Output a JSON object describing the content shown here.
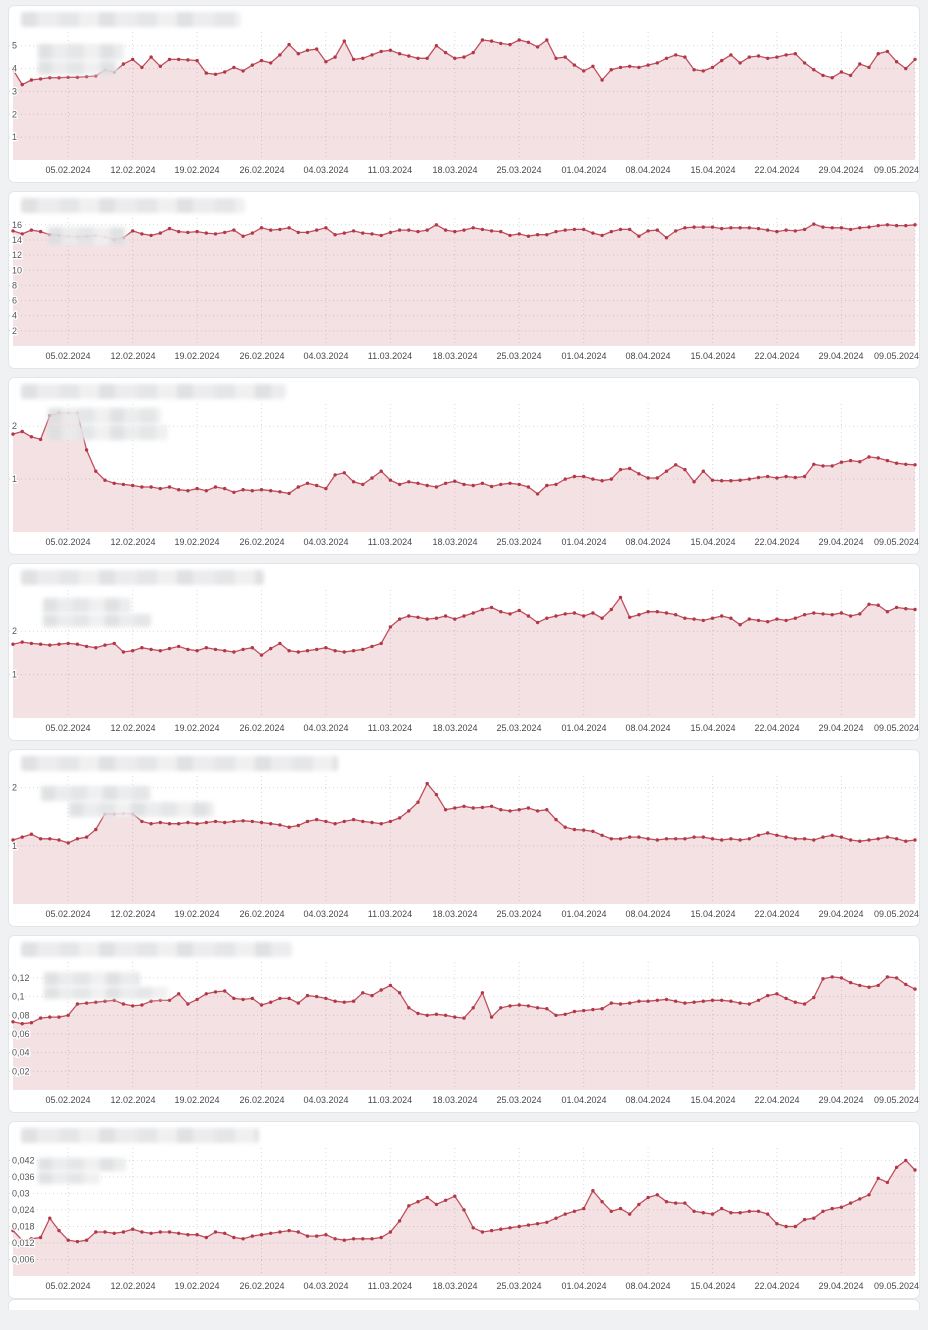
{
  "page": {
    "background_color": "#f0f1f3",
    "card_background": "#ffffff",
    "card_border": "#e3e5e9"
  },
  "chart_style": {
    "line_color": "#c04e5c",
    "dot_color": "#b23848",
    "fill_color": "rgba(191,75,89,0.165)",
    "grid_color": "#d6d8db",
    "y_label_color": "#54565a",
    "x_label_color": "#46484c"
  },
  "chart_data": [
    {
      "type": "area",
      "title": "",
      "title_redacted": true,
      "n_points": 99,
      "x_tick_labels": [
        "05.02.2024",
        "12.02.2024",
        "19.02.2024",
        "26.02.2024",
        "04.03.2024",
        "11.03.2024",
        "18.03.2024",
        "25.03.2024",
        "01.04.2024",
        "08.04.2024",
        "15.04.2024",
        "22.04.2024",
        "29.04.2024",
        "09.05.2024"
      ],
      "x_tick_indices": [
        6,
        13,
        20,
        27,
        34,
        41,
        48,
        55,
        62,
        69,
        76,
        83,
        90,
        98
      ],
      "y_ticks": [
        {
          "value": 1,
          "label": "1"
        },
        {
          "value": 2,
          "label": "2"
        },
        {
          "value": 3,
          "label": "3"
        },
        {
          "value": 4,
          "label": "4"
        },
        {
          "value": 5,
          "label": "5"
        }
      ],
      "ylim": [
        0,
        5.6
      ],
      "values": [
        3.95,
        3.3,
        3.5,
        3.55,
        3.6,
        3.6,
        3.62,
        3.62,
        3.65,
        3.68,
        3.95,
        3.85,
        4.2,
        4.4,
        4.05,
        4.5,
        4.1,
        4.4,
        4.4,
        4.38,
        4.35,
        3.8,
        3.75,
        3.85,
        4.05,
        3.9,
        4.15,
        4.35,
        4.25,
        4.6,
        5.05,
        4.65,
        4.8,
        4.85,
        4.3,
        4.5,
        5.2,
        4.4,
        4.45,
        4.6,
        4.75,
        4.8,
        4.65,
        4.55,
        4.45,
        4.45,
        5.0,
        4.7,
        4.45,
        4.5,
        4.7,
        5.25,
        5.2,
        5.1,
        5.05,
        5.25,
        5.15,
        4.95,
        5.25,
        4.45,
        4.5,
        4.15,
        3.9,
        4.1,
        3.5,
        3.95,
        4.05,
        4.1,
        4.05,
        4.15,
        4.25,
        4.45,
        4.6,
        4.5,
        3.95,
        3.9,
        4.05,
        4.35,
        4.6,
        4.25,
        4.5,
        4.55,
        4.45,
        4.5,
        4.6,
        4.65,
        4.25,
        3.95,
        3.7,
        3.6,
        3.85,
        3.7,
        4.2,
        4.05,
        4.65,
        4.75,
        4.3,
        4.0,
        4.4
      ],
      "redaction": {
        "title_width": 220,
        "legend_blocks": [
          [
            29,
            12,
            86,
            16
          ],
          [
            29,
            29,
            80,
            14
          ]
        ]
      }
    },
    {
      "type": "area",
      "title": "",
      "title_redacted": true,
      "n_points": 99,
      "x_tick_labels": [
        "05.02.2024",
        "12.02.2024",
        "19.02.2024",
        "26.02.2024",
        "04.03.2024",
        "11.03.2024",
        "18.03.2024",
        "25.03.2024",
        "01.04.2024",
        "08.04.2024",
        "15.04.2024",
        "22.04.2024",
        "29.04.2024",
        "09.05.2024"
      ],
      "x_tick_indices": [
        6,
        13,
        20,
        27,
        34,
        41,
        48,
        55,
        62,
        69,
        76,
        83,
        90,
        98
      ],
      "y_ticks": [
        {
          "value": 2,
          "label": "2"
        },
        {
          "value": 4,
          "label": "4"
        },
        {
          "value": 6,
          "label": "6"
        },
        {
          "value": 8,
          "label": "8"
        },
        {
          "value": 10,
          "label": "10"
        },
        {
          "value": 12,
          "label": "12"
        },
        {
          "value": 14,
          "label": "14"
        },
        {
          "value": 16,
          "label": "16"
        }
      ],
      "ylim": [
        0,
        16.9
      ],
      "values": [
        15.2,
        14.8,
        15.3,
        15.1,
        14.7,
        14.6,
        14.5,
        14.4,
        14.5,
        14.6,
        14.4,
        14.05,
        14.3,
        15.2,
        14.8,
        14.6,
        14.9,
        15.5,
        15.1,
        15.0,
        15.1,
        14.9,
        14.8,
        15.0,
        15.3,
        14.5,
        14.9,
        15.6,
        15.3,
        15.4,
        15.6,
        15.0,
        15.0,
        15.3,
        15.6,
        14.7,
        14.9,
        15.2,
        14.9,
        14.8,
        14.6,
        15.0,
        15.3,
        15.3,
        15.1,
        15.3,
        16.0,
        15.3,
        15.1,
        15.3,
        15.6,
        15.4,
        15.2,
        15.1,
        14.6,
        14.8,
        14.5,
        14.7,
        14.7,
        15.1,
        15.3,
        15.4,
        15.4,
        14.9,
        14.6,
        15.1,
        15.4,
        15.4,
        14.5,
        15.2,
        15.3,
        14.3,
        15.2,
        15.6,
        15.7,
        15.7,
        15.7,
        15.5,
        15.6,
        15.6,
        15.6,
        15.5,
        15.3,
        15.1,
        15.3,
        15.2,
        15.4,
        16.1,
        15.7,
        15.6,
        15.6,
        15.4,
        15.6,
        15.7,
        15.9,
        16.0,
        15.9,
        15.9,
        16.0
      ],
      "redaction": {
        "title_width": 224,
        "legend_blocks": [
          [
            39,
            9,
            78,
            18
          ]
        ]
      }
    },
    {
      "type": "area",
      "title": "",
      "title_redacted": true,
      "n_points": 99,
      "x_tick_labels": [
        "05.02.2024",
        "12.02.2024",
        "19.02.2024",
        "26.02.2024",
        "04.03.2024",
        "11.03.2024",
        "18.03.2024",
        "25.03.2024",
        "01.04.2024",
        "08.04.2024",
        "15.04.2024",
        "22.04.2024",
        "29.04.2024",
        "09.05.2024"
      ],
      "x_tick_indices": [
        6,
        13,
        20,
        27,
        34,
        41,
        48,
        55,
        62,
        69,
        76,
        83,
        90,
        98
      ],
      "y_ticks": [
        {
          "value": 1,
          "label": "1"
        },
        {
          "value": 2,
          "label": "2"
        }
      ],
      "ylim": [
        0,
        2.42
      ],
      "values": [
        1.85,
        1.9,
        1.8,
        1.75,
        2.2,
        2.25,
        2.25,
        2.25,
        1.55,
        1.15,
        0.98,
        0.92,
        0.9,
        0.88,
        0.85,
        0.85,
        0.82,
        0.85,
        0.8,
        0.78,
        0.82,
        0.78,
        0.85,
        0.82,
        0.75,
        0.8,
        0.78,
        0.8,
        0.78,
        0.76,
        0.73,
        0.85,
        0.92,
        0.88,
        0.82,
        1.08,
        1.12,
        0.95,
        0.9,
        1.02,
        1.15,
        0.98,
        0.9,
        0.95,
        0.92,
        0.88,
        0.85,
        0.92,
        0.96,
        0.9,
        0.88,
        0.92,
        0.86,
        0.9,
        0.92,
        0.9,
        0.85,
        0.72,
        0.88,
        0.9,
        1.0,
        1.05,
        1.05,
        1.0,
        0.97,
        1.0,
        1.18,
        1.2,
        1.1,
        1.02,
        1.02,
        1.15,
        1.27,
        1.18,
        0.95,
        1.15,
        0.98,
        0.97,
        0.97,
        0.98,
        1.0,
        1.03,
        1.05,
        1.02,
        1.05,
        1.03,
        1.05,
        1.28,
        1.25,
        1.25,
        1.32,
        1.35,
        1.33,
        1.42,
        1.4,
        1.35,
        1.3,
        1.28,
        1.27
      ],
      "redaction": {
        "title_width": 265,
        "legend_blocks": [
          [
            39,
            4,
            113,
            16
          ],
          [
            39,
            21,
            120,
            15
          ]
        ]
      }
    },
    {
      "type": "area",
      "title": "",
      "title_redacted": true,
      "n_points": 99,
      "x_tick_labels": [
        "05.02.2024",
        "12.02.2024",
        "19.02.2024",
        "26.02.2024",
        "04.03.2024",
        "11.03.2024",
        "18.03.2024",
        "25.03.2024",
        "01.04.2024",
        "08.04.2024",
        "15.04.2024",
        "22.04.2024",
        "29.04.2024",
        "09.05.2024"
      ],
      "x_tick_indices": [
        6,
        13,
        20,
        27,
        34,
        41,
        48,
        55,
        62,
        69,
        76,
        83,
        90,
        98
      ],
      "y_ticks": [
        {
          "value": 1,
          "label": "1"
        },
        {
          "value": 2,
          "label": "2"
        }
      ],
      "ylim": [
        0,
        2.95
      ],
      "values": [
        1.7,
        1.75,
        1.72,
        1.7,
        1.68,
        1.7,
        1.72,
        1.7,
        1.65,
        1.62,
        1.68,
        1.72,
        1.52,
        1.55,
        1.62,
        1.58,
        1.55,
        1.6,
        1.65,
        1.58,
        1.55,
        1.62,
        1.58,
        1.55,
        1.52,
        1.58,
        1.62,
        1.45,
        1.6,
        1.72,
        1.55,
        1.52,
        1.55,
        1.58,
        1.62,
        1.55,
        1.52,
        1.55,
        1.58,
        1.65,
        1.72,
        2.1,
        2.28,
        2.35,
        2.32,
        2.28,
        2.3,
        2.35,
        2.28,
        2.35,
        2.42,
        2.5,
        2.55,
        2.45,
        2.4,
        2.48,
        2.35,
        2.2,
        2.3,
        2.35,
        2.4,
        2.42,
        2.35,
        2.42,
        2.3,
        2.5,
        2.78,
        2.32,
        2.38,
        2.45,
        2.45,
        2.42,
        2.38,
        2.3,
        2.28,
        2.25,
        2.3,
        2.35,
        2.3,
        2.15,
        2.28,
        2.25,
        2.22,
        2.28,
        2.25,
        2.3,
        2.38,
        2.42,
        2.4,
        2.38,
        2.42,
        2.35,
        2.4,
        2.62,
        2.6,
        2.45,
        2.55,
        2.52,
        2.5
      ],
      "redaction": {
        "title_width": 243,
        "legend_blocks": [
          [
            34,
            8,
            88,
            15
          ],
          [
            34,
            24,
            108,
            13
          ]
        ]
      }
    },
    {
      "type": "area",
      "title": "",
      "title_redacted": true,
      "n_points": 99,
      "x_tick_labels": [
        "05.02.2024",
        "12.02.2024",
        "19.02.2024",
        "26.02.2024",
        "04.03.2024",
        "11.03.2024",
        "18.03.2024",
        "25.03.2024",
        "01.04.2024",
        "08.04.2024",
        "15.04.2024",
        "22.04.2024",
        "29.04.2024",
        "09.05.2024"
      ],
      "x_tick_indices": [
        6,
        13,
        20,
        27,
        34,
        41,
        48,
        55,
        62,
        69,
        76,
        83,
        90,
        98
      ],
      "y_ticks": [
        {
          "value": 1,
          "label": "1"
        },
        {
          "value": 2,
          "label": "2"
        }
      ],
      "ylim": [
        0,
        2.2
      ],
      "values": [
        1.1,
        1.15,
        1.2,
        1.12,
        1.12,
        1.1,
        1.05,
        1.12,
        1.15,
        1.28,
        1.55,
        1.55,
        1.56,
        1.55,
        1.42,
        1.38,
        1.4,
        1.38,
        1.38,
        1.4,
        1.38,
        1.4,
        1.42,
        1.4,
        1.42,
        1.43,
        1.42,
        1.4,
        1.38,
        1.36,
        1.32,
        1.35,
        1.42,
        1.45,
        1.42,
        1.38,
        1.42,
        1.45,
        1.42,
        1.4,
        1.38,
        1.42,
        1.48,
        1.6,
        1.75,
        2.07,
        1.88,
        1.62,
        1.65,
        1.68,
        1.65,
        1.66,
        1.68,
        1.62,
        1.6,
        1.62,
        1.65,
        1.6,
        1.62,
        1.45,
        1.32,
        1.28,
        1.27,
        1.25,
        1.18,
        1.12,
        1.12,
        1.15,
        1.15,
        1.12,
        1.1,
        1.12,
        1.12,
        1.12,
        1.15,
        1.15,
        1.12,
        1.1,
        1.12,
        1.1,
        1.12,
        1.18,
        1.22,
        1.18,
        1.15,
        1.12,
        1.12,
        1.1,
        1.15,
        1.18,
        1.15,
        1.1,
        1.08,
        1.1,
        1.12,
        1.15,
        1.12,
        1.08,
        1.1
      ],
      "redaction": {
        "title_width": 317,
        "legend_blocks": [
          [
            32,
            10,
            110,
            15
          ],
          [
            60,
            26,
            145,
            15
          ]
        ]
      }
    },
    {
      "type": "area",
      "title": "",
      "title_redacted": true,
      "n_points": 99,
      "x_tick_labels": [
        "05.02.2024",
        "12.02.2024",
        "19.02.2024",
        "26.02.2024",
        "04.03.2024",
        "11.03.2024",
        "18.03.2024",
        "25.03.2024",
        "01.04.2024",
        "08.04.2024",
        "15.04.2024",
        "22.04.2024",
        "29.04.2024",
        "09.05.2024"
      ],
      "x_tick_indices": [
        6,
        13,
        20,
        27,
        34,
        41,
        48,
        55,
        62,
        69,
        76,
        83,
        90,
        98
      ],
      "y_ticks": [
        {
          "value": 0.02,
          "label": "0,02"
        },
        {
          "value": 0.04,
          "label": "0,04"
        },
        {
          "value": 0.06,
          "label": "0,06"
        },
        {
          "value": 0.08,
          "label": "0,08"
        },
        {
          "value": 0.1,
          "label": "0,1"
        },
        {
          "value": 0.12,
          "label": "0,12"
        }
      ],
      "ylim": [
        0,
        0.137
      ],
      "values": [
        0.073,
        0.071,
        0.072,
        0.077,
        0.078,
        0.078,
        0.08,
        0.092,
        0.093,
        0.094,
        0.095,
        0.096,
        0.092,
        0.09,
        0.091,
        0.095,
        0.096,
        0.096,
        0.103,
        0.092,
        0.097,
        0.103,
        0.105,
        0.106,
        0.098,
        0.097,
        0.098,
        0.091,
        0.094,
        0.098,
        0.098,
        0.093,
        0.101,
        0.1,
        0.098,
        0.095,
        0.094,
        0.095,
        0.104,
        0.101,
        0.107,
        0.112,
        0.104,
        0.088,
        0.082,
        0.08,
        0.081,
        0.08,
        0.078,
        0.077,
        0.088,
        0.104,
        0.078,
        0.088,
        0.09,
        0.091,
        0.09,
        0.088,
        0.087,
        0.08,
        0.081,
        0.084,
        0.085,
        0.086,
        0.087,
        0.093,
        0.092,
        0.093,
        0.095,
        0.095,
        0.096,
        0.097,
        0.095,
        0.093,
        0.094,
        0.095,
        0.096,
        0.096,
        0.095,
        0.093,
        0.092,
        0.096,
        0.101,
        0.103,
        0.098,
        0.094,
        0.092,
        0.099,
        0.119,
        0.121,
        0.12,
        0.115,
        0.112,
        0.11,
        0.112,
        0.121,
        0.12,
        0.113,
        0.108
      ],
      "redaction": {
        "title_width": 271,
        "legend_blocks": [
          [
            35,
            10,
            96,
            14
          ],
          [
            35,
            25,
            124,
            12
          ]
        ]
      }
    },
    {
      "type": "area",
      "title": "",
      "title_redacted": true,
      "n_points": 99,
      "x_tick_labels": [
        "05.02.2024",
        "12.02.2024",
        "19.02.2024",
        "26.02.2024",
        "04.03.2024",
        "11.03.2024",
        "18.03.2024",
        "25.03.2024",
        "01.04.2024",
        "08.04.2024",
        "15.04.2024",
        "22.04.2024",
        "29.04.2024",
        "09.05.2024"
      ],
      "x_tick_indices": [
        6,
        13,
        20,
        27,
        34,
        41,
        48,
        55,
        62,
        69,
        76,
        83,
        90,
        98
      ],
      "y_ticks": [
        {
          "value": 0.006,
          "label": "0,006"
        },
        {
          "value": 0.012,
          "label": "0,012"
        },
        {
          "value": 0.018,
          "label": "0,018"
        },
        {
          "value": 0.024,
          "label": "0,024"
        },
        {
          "value": 0.03,
          "label": "0,03"
        },
        {
          "value": 0.036,
          "label": "0,036"
        },
        {
          "value": 0.042,
          "label": "0,042"
        }
      ],
      "ylim": [
        0,
        0.0465
      ],
      "values": [
        0.0165,
        0.013,
        0.0135,
        0.014,
        0.021,
        0.0165,
        0.013,
        0.0125,
        0.013,
        0.016,
        0.016,
        0.0155,
        0.016,
        0.017,
        0.016,
        0.0155,
        0.016,
        0.016,
        0.0155,
        0.015,
        0.015,
        0.014,
        0.016,
        0.0155,
        0.014,
        0.0135,
        0.0145,
        0.015,
        0.0155,
        0.016,
        0.0165,
        0.016,
        0.0145,
        0.0145,
        0.015,
        0.0135,
        0.013,
        0.0135,
        0.0135,
        0.0135,
        0.014,
        0.016,
        0.02,
        0.0255,
        0.027,
        0.0285,
        0.026,
        0.0275,
        0.029,
        0.024,
        0.0175,
        0.016,
        0.0165,
        0.017,
        0.0175,
        0.018,
        0.0185,
        0.019,
        0.0195,
        0.021,
        0.0225,
        0.0235,
        0.0245,
        0.031,
        0.027,
        0.0235,
        0.0245,
        0.0225,
        0.026,
        0.0285,
        0.0295,
        0.027,
        0.0265,
        0.0265,
        0.0235,
        0.023,
        0.0225,
        0.0245,
        0.023,
        0.023,
        0.0235,
        0.0235,
        0.0225,
        0.019,
        0.018,
        0.018,
        0.0205,
        0.021,
        0.0235,
        0.0245,
        0.025,
        0.0265,
        0.028,
        0.0295,
        0.0355,
        0.034,
        0.0395,
        0.042,
        0.0385
      ],
      "redaction": {
        "title_width": 238,
        "legend_blocks": [
          [
            29,
            10,
            88,
            13
          ],
          [
            29,
            24,
            62,
            12
          ]
        ]
      }
    }
  ]
}
